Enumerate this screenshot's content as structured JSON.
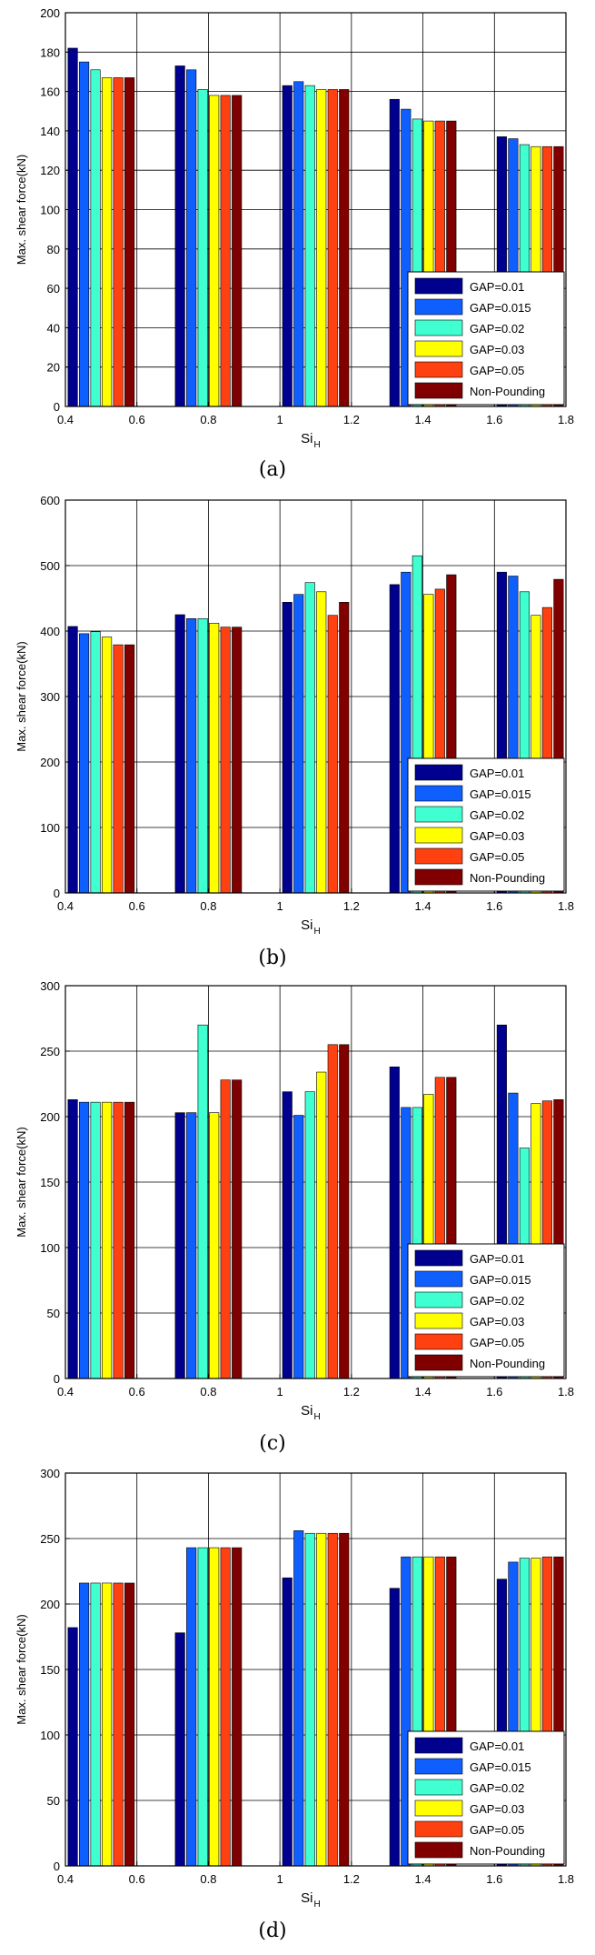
{
  "legend": [
    "GAP=0.01",
    "GAP=0.015",
    "GAP=0.02",
    "GAP=0.03",
    "GAP=0.05",
    "Non-Pounding"
  ],
  "colors": [
    "#00008f",
    "#0f5fff",
    "#40ffd0",
    "#ffff00",
    "#ff4010",
    "#800000"
  ],
  "axis_labels": {
    "ylabel": "Max. shear force(kN)",
    "xlabel": "Si",
    "xlabel_sub": "H"
  },
  "chart_data": [
    {
      "type": "bar",
      "caption": "(a)",
      "categories": [
        0.5,
        0.8,
        1.1,
        1.4,
        1.7
      ],
      "x_ticks": [
        "0.4",
        "0.6",
        "0.8",
        "1",
        "1.2",
        "1.4",
        "1.6",
        "1.8"
      ],
      "xlim": [
        0.4,
        1.8
      ],
      "ylim": [
        0,
        200
      ],
      "y_ticks": [
        0,
        20,
        40,
        60,
        80,
        100,
        120,
        140,
        160,
        180,
        200
      ],
      "grid": true,
      "legend_position": "lower-right",
      "series": [
        {
          "name": "GAP=0.01",
          "values": [
            182,
            173,
            163,
            156,
            137
          ]
        },
        {
          "name": "GAP=0.015",
          "values": [
            175,
            171,
            165,
            151,
            136
          ]
        },
        {
          "name": "GAP=0.02",
          "values": [
            171,
            161,
            163,
            146,
            133
          ]
        },
        {
          "name": "GAP=0.03",
          "values": [
            167,
            158,
            161,
            145,
            132
          ]
        },
        {
          "name": "GAP=0.05",
          "values": [
            167,
            158,
            161,
            145,
            132
          ]
        },
        {
          "name": "Non-Pounding",
          "values": [
            167,
            158,
            161,
            145,
            132
          ]
        }
      ]
    },
    {
      "type": "bar",
      "caption": "(b)",
      "categories": [
        0.5,
        0.8,
        1.1,
        1.4,
        1.7
      ],
      "x_ticks": [
        "0.4",
        "0.6",
        "0.8",
        "1",
        "1.2",
        "1.4",
        "1.6",
        "1.8"
      ],
      "xlim": [
        0.4,
        1.8
      ],
      "ylim": [
        0,
        600
      ],
      "y_ticks": [
        0,
        100,
        200,
        300,
        400,
        500,
        600
      ],
      "grid": true,
      "legend_position": "lower-right",
      "series": [
        {
          "name": "GAP=0.01",
          "values": [
            407,
            425,
            444,
            471,
            490
          ]
        },
        {
          "name": "GAP=0.015",
          "values": [
            396,
            419,
            456,
            490,
            484
          ]
        },
        {
          "name": "GAP=0.02",
          "values": [
            399,
            419,
            474,
            515,
            460
          ]
        },
        {
          "name": "GAP=0.03",
          "values": [
            391,
            412,
            460,
            456,
            424
          ]
        },
        {
          "name": "GAP=0.05",
          "values": [
            379,
            406,
            424,
            464,
            436
          ]
        },
        {
          "name": "Non-Pounding",
          "values": [
            379,
            406,
            444,
            486,
            479
          ]
        }
      ]
    },
    {
      "type": "bar",
      "caption": "(c)",
      "categories": [
        0.5,
        0.8,
        1.1,
        1.4,
        1.7
      ],
      "x_ticks": [
        "0.4",
        "0.6",
        "0.8",
        "1",
        "1.2",
        "1.4",
        "1.6",
        "1.8"
      ],
      "xlim": [
        0.4,
        1.8
      ],
      "ylim": [
        0,
        300
      ],
      "y_ticks": [
        0,
        50,
        100,
        150,
        200,
        250,
        300
      ],
      "grid": true,
      "legend_position": "lower-right",
      "series": [
        {
          "name": "GAP=0.01",
          "values": [
            213,
            203,
            219,
            238,
            270
          ]
        },
        {
          "name": "GAP=0.015",
          "values": [
            211,
            203,
            201,
            207,
            218
          ]
        },
        {
          "name": "GAP=0.02",
          "values": [
            211,
            270,
            219,
            207,
            176
          ]
        },
        {
          "name": "GAP=0.03",
          "values": [
            211,
            203,
            234,
            217,
            210
          ]
        },
        {
          "name": "GAP=0.05",
          "values": [
            211,
            228,
            255,
            230,
            212
          ]
        },
        {
          "name": "Non-Pounding",
          "values": [
            211,
            228,
            255,
            230,
            213
          ]
        }
      ]
    },
    {
      "type": "bar",
      "caption": "(d)",
      "categories": [
        0.5,
        0.8,
        1.1,
        1.4,
        1.7
      ],
      "x_ticks": [
        "0.4",
        "0.6",
        "0.8",
        "1",
        "1.2",
        "1.4",
        "1.6",
        "1.8"
      ],
      "xlim": [
        0.4,
        1.8
      ],
      "ylim": [
        0,
        300
      ],
      "y_ticks": [
        0,
        50,
        100,
        150,
        200,
        250,
        300
      ],
      "grid": true,
      "legend_position": "lower-right",
      "series": [
        {
          "name": "GAP=0.01",
          "values": [
            182,
            178,
            220,
            212,
            219
          ]
        },
        {
          "name": "GAP=0.015",
          "values": [
            216,
            243,
            256,
            236,
            232
          ]
        },
        {
          "name": "GAP=0.02",
          "values": [
            216,
            243,
            254,
            236,
            235
          ]
        },
        {
          "name": "GAP=0.03",
          "values": [
            216,
            243,
            254,
            236,
            235
          ]
        },
        {
          "name": "GAP=0.05",
          "values": [
            216,
            243,
            254,
            236,
            236
          ]
        },
        {
          "name": "Non-Pounding",
          "values": [
            216,
            243,
            254,
            236,
            236
          ]
        }
      ]
    }
  ]
}
